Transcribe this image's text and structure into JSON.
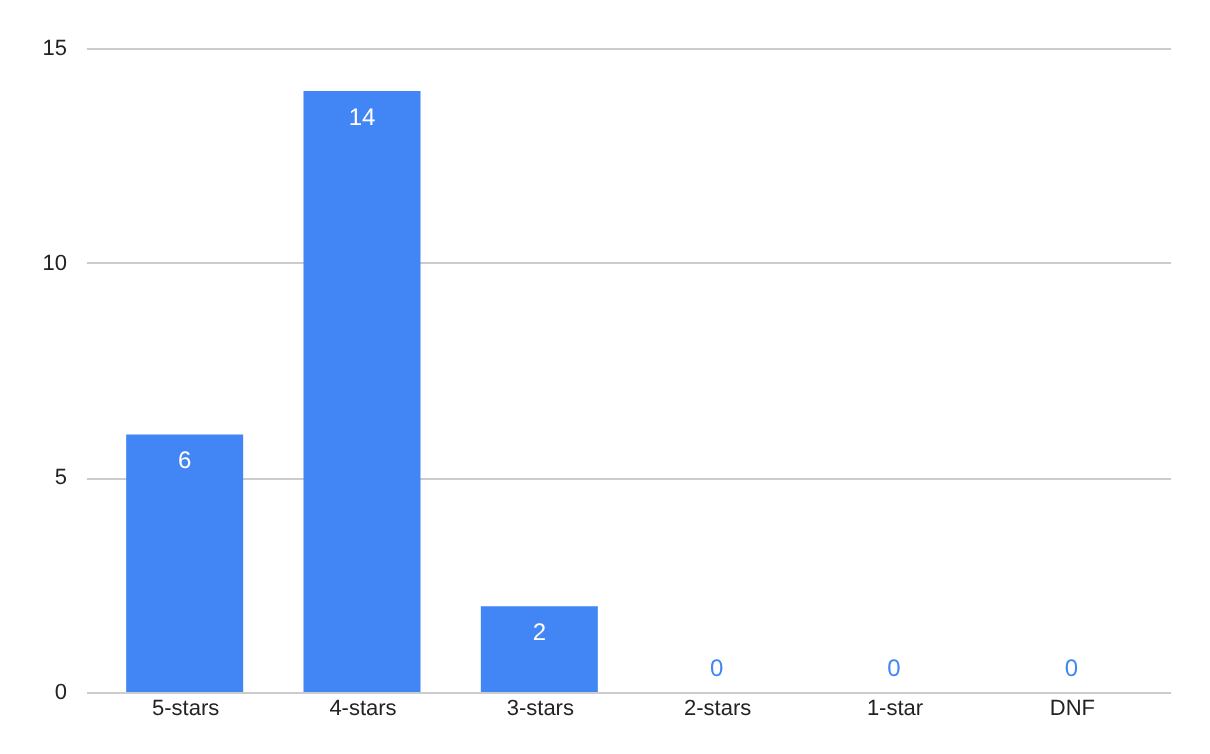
{
  "chart_data": {
    "type": "bar",
    "categories": [
      "5-stars",
      "4-stars",
      "3-stars",
      "2-stars",
      "1-star",
      "DNF"
    ],
    "values": [
      6,
      14,
      2,
      0,
      0,
      0
    ],
    "color": "#4285f4",
    "ylim": [
      0,
      15
    ],
    "yticks": [
      0,
      5,
      10,
      15
    ],
    "grid": "y",
    "data_labels": true
  }
}
